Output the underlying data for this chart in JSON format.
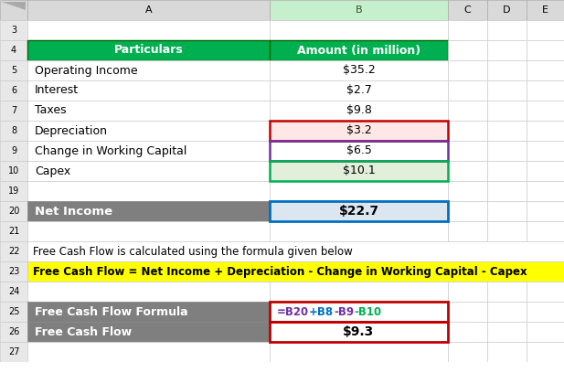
{
  "col_headers_labels": [
    "",
    "A",
    "B",
    "C",
    "D",
    "E"
  ],
  "header_row": [
    "Particulars",
    "Amount (in million)"
  ],
  "data_rows": [
    [
      "Operating Income",
      "$35.2"
    ],
    [
      "Interest",
      "$2.7"
    ],
    [
      "Taxes",
      "$9.8"
    ],
    [
      "Depreciation",
      "$3.2"
    ],
    [
      "Change in Working Capital",
      "$6.5"
    ],
    [
      "Capex",
      "$10.1"
    ]
  ],
  "net_income_label": "Net Income",
  "net_income_value": "$22.7",
  "formula_text": "Free Cash Flow is calculated using the formula given below",
  "formula_row_text": "Free Cash Flow = Net Income + Depreciation - Change in Working Capital - Capex",
  "formula_label": "Free Cash Flow Formula",
  "formula_value_parts": [
    "=B20",
    "+B8",
    "-B9",
    "-B10"
  ],
  "formula_value_colors": [
    "#7030A0",
    "#0070C0",
    "#7030A0",
    "#00B050"
  ],
  "fcf_label": "Free Cash Flow",
  "fcf_value": "$9.3",
  "header_bg": "#00B050",
  "header_text": "#FFFFFF",
  "gray_bg": "#7F7F7F",
  "gray_text": "#FFFFFF",
  "depr_bg": "#FFE7E7",
  "capex_bg": "#E2EFDA",
  "net_income_bg": "#DCE6F1",
  "yellow_bg": "#FFFF00",
  "col_header_bg": "#D9D9D9",
  "col_header_b_bg": "#C6EFCE",
  "row_num_bg": "#E8E8E8",
  "fig_bg": "#FFFFFF",
  "border_red": "#C00000",
  "border_blue": "#0070C0",
  "border_purple": "#7030A0",
  "border_green": "#00B050",
  "border_dark_green": "#375623"
}
